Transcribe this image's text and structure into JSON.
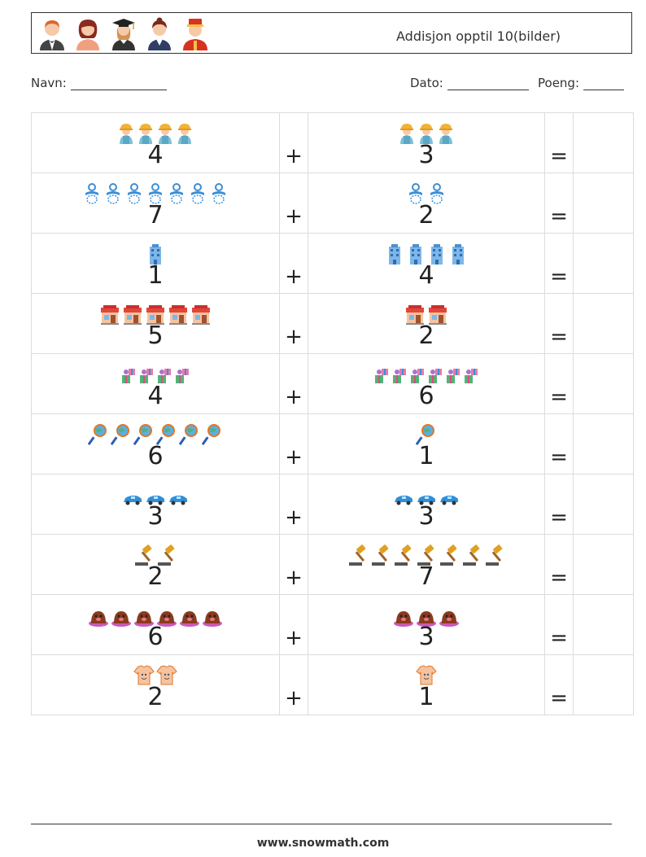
{
  "header": {
    "title": "Addisjon opptil 10(bilder)",
    "avatars": [
      "waiter-avatar",
      "woman-avatar",
      "graduate-avatar",
      "businesswoman-avatar",
      "bellboy-avatar"
    ]
  },
  "meta": {
    "name_label": "Navn:",
    "date_label": "Dato:",
    "score_label": "Poeng:"
  },
  "operators": {
    "plus": "+",
    "equals": "="
  },
  "rows": [
    {
      "a": 4,
      "b": 3,
      "a_label": "4",
      "b_label": "3",
      "icon": "construction-worker-icon"
    },
    {
      "a": 7,
      "b": 2,
      "a_label": "7",
      "b_label": "2",
      "icon": "pacifier-icon"
    },
    {
      "a": 1,
      "b": 4,
      "a_label": "1",
      "b_label": "4",
      "icon": "building-icon"
    },
    {
      "a": 5,
      "b": 2,
      "a_label": "5",
      "b_label": "2",
      "icon": "shop-icon"
    },
    {
      "a": 4,
      "b": 6,
      "a_label": "4",
      "b_label": "6",
      "icon": "gift-box-icon"
    },
    {
      "a": 6,
      "b": 1,
      "a_label": "6",
      "b_label": "1",
      "icon": "magnifier-globe-icon"
    },
    {
      "a": 3,
      "b": 3,
      "a_label": "3",
      "b_label": "3",
      "icon": "car-icon"
    },
    {
      "a": 2,
      "b": 7,
      "a_label": "2",
      "b_label": "7",
      "icon": "gavel-icon"
    },
    {
      "a": 6,
      "b": 3,
      "a_label": "6",
      "b_label": "3",
      "icon": "mole-icon"
    },
    {
      "a": 2,
      "b": 1,
      "a_label": "2",
      "b_label": "1",
      "icon": "baby-bodysuit-icon"
    }
  ],
  "footer": {
    "text": "www.snowmath.com"
  }
}
